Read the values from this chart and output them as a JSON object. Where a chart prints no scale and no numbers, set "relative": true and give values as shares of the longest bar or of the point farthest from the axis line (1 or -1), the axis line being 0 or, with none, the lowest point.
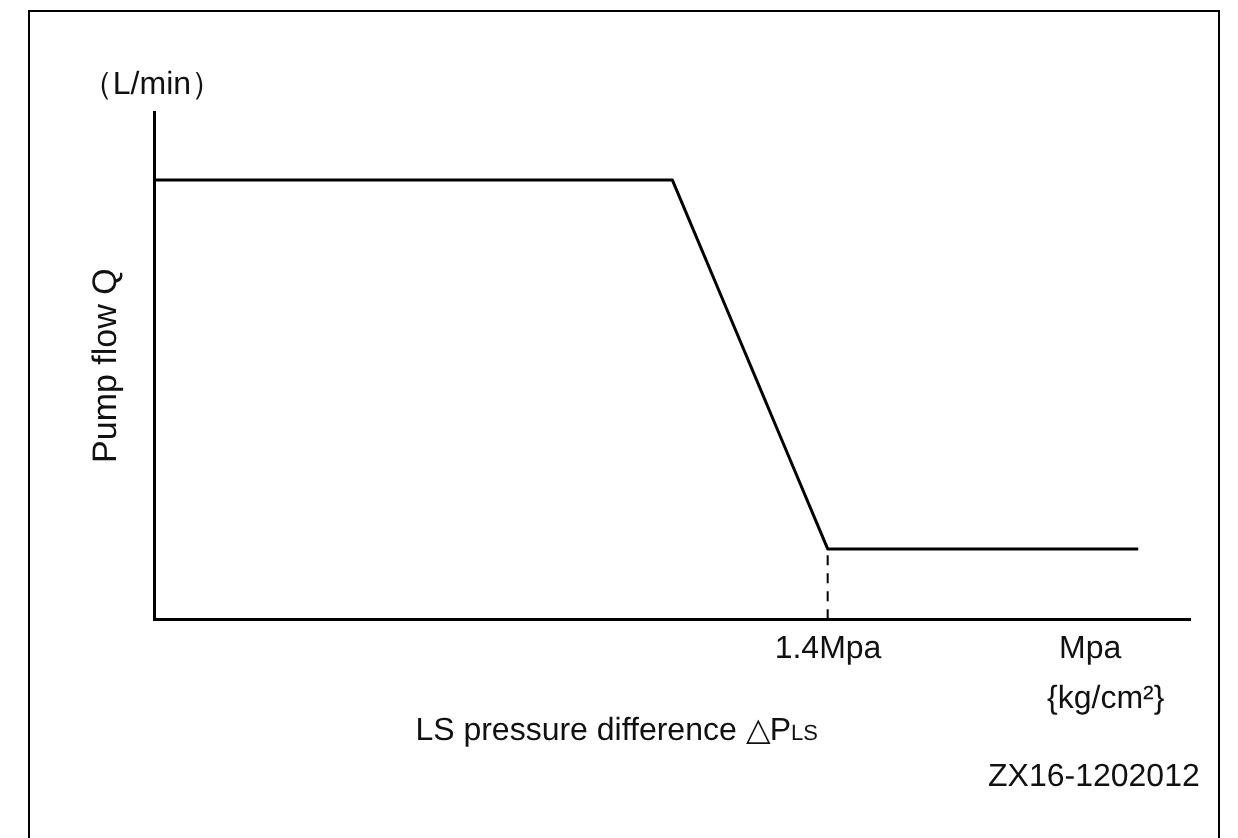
{
  "chart_data": {
    "type": "line",
    "relative": true,
    "xlabel": "LS pressure difference △P$_{LS}$",
    "ylabel": "Pump flow Q",
    "categories": [
      null,
      null,
      null,
      null,
      null,
      null,
      null,
      null,
      null,
      null,
      null,
      null,
      null,
      null,
      null,
      null,
      null,
      null,
      null,
      null,
      null
    ],
    "series": [
      {
        "color": "#000000",
        "values": [
          1,
          1,
          1,
          1,
          1,
          1,
          1,
          1,
          1,
          1,
          1,
          0.72,
          0.44,
          0.16,
          0.16,
          0.16,
          0.16,
          0.16,
          0.16,
          0.16,
          null
        ]
      }
    ],
    "annotations": [
      "（L/min）",
      "Mpa",
      "{kg/cm²}",
      "ZX16-1202012",
      "1.4Mpa"
    ],
    "grid": false,
    "legend": false,
    "marker": "none",
    "line_style": "solid"
  }
}
